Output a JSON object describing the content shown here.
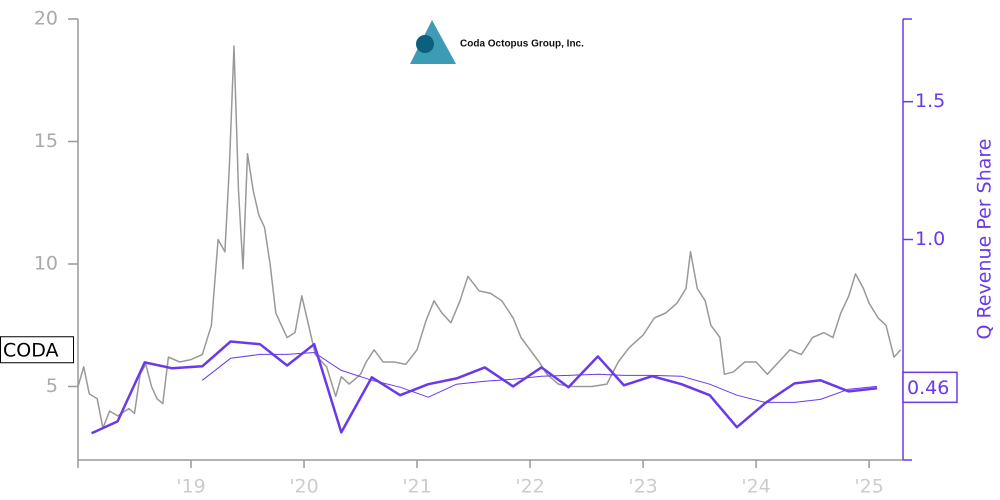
{
  "logo": "Coda Octopus Group, Inc.",
  "chart_data": {
    "type": "line",
    "y2label": "Q Revenue Per Share",
    "xlim": [
      2018.0,
      2025.3
    ],
    "xticks": [
      {
        "value": 2019,
        "label": "'19"
      },
      {
        "value": 2020,
        "label": "'20"
      },
      {
        "value": 2021,
        "label": "'21"
      },
      {
        "value": 2022,
        "label": "'22"
      },
      {
        "value": 2023,
        "label": "'23"
      },
      {
        "value": 2024,
        "label": "'24"
      },
      {
        "value": 2025,
        "label": "'25"
      }
    ],
    "ylim": [
      2,
      20
    ],
    "yticks": [
      5,
      10,
      15,
      20
    ],
    "y2lim": [
      0.2,
      1.8
    ],
    "y2ticks": [
      {
        "value": 1.0,
        "label": "1.0"
      },
      {
        "value": 1.5,
        "label": "1.5"
      }
    ],
    "grid": false,
    "series": [
      {
        "name": "CODA",
        "color": "#999999",
        "line_width": 1.5,
        "x": [
          2018.0,
          2018.05,
          2018.1,
          2018.17,
          2018.22,
          2018.28,
          2018.35,
          2018.45,
          2018.5,
          2018.55,
          2018.6,
          2018.65,
          2018.7,
          2018.75,
          2018.8,
          2018.9,
          2019.0,
          2019.1,
          2019.18,
          2019.24,
          2019.3,
          2019.34,
          2019.38,
          2019.42,
          2019.46,
          2019.5,
          2019.55,
          2019.6,
          2019.65,
          2019.7,
          2019.75,
          2019.8,
          2019.85,
          2019.92,
          2019.98,
          2020.05,
          2020.1,
          2020.2,
          2020.28,
          2020.33,
          2020.4,
          2020.5,
          2020.55,
          2020.62,
          2020.7,
          2020.8,
          2020.9,
          2021.0,
          2021.08,
          2021.15,
          2021.22,
          2021.3,
          2021.38,
          2021.45,
          2021.55,
          2021.65,
          2021.75,
          2021.85,
          2021.92,
          2022.0,
          2022.08,
          2022.15,
          2022.25,
          2022.35,
          2022.45,
          2022.55,
          2022.68,
          2022.78,
          2022.88,
          2023.0,
          2023.1,
          2023.2,
          2023.3,
          2023.38,
          2023.42,
          2023.48,
          2023.55,
          2023.6,
          2023.68,
          2023.72,
          2023.8,
          2023.9,
          2024.0,
          2024.1,
          2024.2,
          2024.3,
          2024.4,
          2024.5,
          2024.6,
          2024.68,
          2024.75,
          2024.82,
          2024.88,
          2024.95,
          2025.0,
          2025.08,
          2025.15,
          2025.22,
          2025.28
        ],
        "values": [
          5.0,
          5.8,
          4.7,
          4.5,
          3.3,
          4.0,
          3.8,
          4.1,
          3.9,
          5.5,
          5.9,
          5.0,
          4.5,
          4.3,
          6.2,
          6.0,
          6.1,
          6.3,
          7.5,
          11.0,
          10.5,
          14.0,
          18.9,
          13.0,
          9.8,
          14.5,
          13.0,
          12.0,
          11.5,
          10.0,
          8.0,
          7.5,
          7.0,
          7.2,
          8.7,
          7.3,
          6.3,
          5.8,
          4.6,
          5.4,
          5.1,
          5.5,
          6.0,
          6.5,
          6.0,
          6.0,
          5.9,
          6.5,
          7.7,
          8.5,
          8.0,
          7.6,
          8.5,
          9.5,
          8.9,
          8.8,
          8.5,
          7.8,
          7.0,
          6.5,
          6.0,
          5.5,
          5.1,
          5.0,
          5.0,
          5.0,
          5.1,
          6.0,
          6.6,
          7.1,
          7.8,
          8.0,
          8.4,
          9.0,
          10.5,
          9.0,
          8.5,
          7.5,
          7.0,
          5.5,
          5.6,
          6.0,
          6.0,
          5.5,
          6.0,
          6.5,
          6.3,
          7.0,
          7.2,
          7.0,
          8.0,
          8.7,
          9.6,
          9.0,
          8.4,
          7.8,
          7.5,
          6.2,
          6.5
        ]
      },
      {
        "color": "#6a3aea",
        "axis": "y2",
        "line_width": 2.5,
        "x": [
          2018.12,
          2018.35,
          2018.59,
          2018.83,
          2019.1,
          2019.35,
          2019.61,
          2019.85,
          2020.09,
          2020.33,
          2020.6,
          2020.85,
          2021.1,
          2021.35,
          2021.6,
          2021.85,
          2022.1,
          2022.34,
          2022.6,
          2022.83,
          2023.08,
          2023.34,
          2023.59,
          2023.83,
          2024.08,
          2024.34,
          2024.57,
          2024.82,
          2025.07
        ],
        "values": [
          0.297,
          0.34,
          0.554,
          0.533,
          0.54,
          0.63,
          0.62,
          0.543,
          0.62,
          0.3,
          0.5,
          0.435,
          0.475,
          0.496,
          0.536,
          0.467,
          0.536,
          0.464,
          0.576,
          0.471,
          0.504,
          0.475,
          0.435,
          0.319,
          0.406,
          0.478,
          0.489,
          0.449,
          0.46
        ],
        "value_labels": [
          null,
          null,
          null,
          null,
          null,
          null,
          null,
          null,
          null,
          null,
          null,
          null,
          null,
          null,
          null,
          null,
          null,
          null,
          null,
          null,
          null,
          null,
          null,
          null,
          null,
          null,
          null,
          null,
          "0.46"
        ]
      },
      {
        "color": "#6a3aea",
        "axis": "y2",
        "line_width": 1,
        "x": [
          2019.1,
          2019.35,
          2019.61,
          2019.85,
          2020.09,
          2020.33,
          2020.6,
          2020.85,
          2021.1,
          2021.35,
          2021.6,
          2021.85,
          2022.1,
          2022.34,
          2022.6,
          2022.83,
          2023.08,
          2023.34,
          2023.59,
          2023.83,
          2024.08,
          2024.34,
          2024.57,
          2024.82,
          2025.07
        ],
        "values": [
          0.489,
          0.569,
          0.583,
          0.583,
          0.59,
          0.525,
          0.489,
          0.464,
          0.428,
          0.475,
          0.486,
          0.493,
          0.504,
          0.507,
          0.511,
          0.507,
          0.507,
          0.504,
          0.475,
          0.435,
          0.409,
          0.409,
          0.42,
          0.457,
          0.467
        ]
      }
    ]
  }
}
